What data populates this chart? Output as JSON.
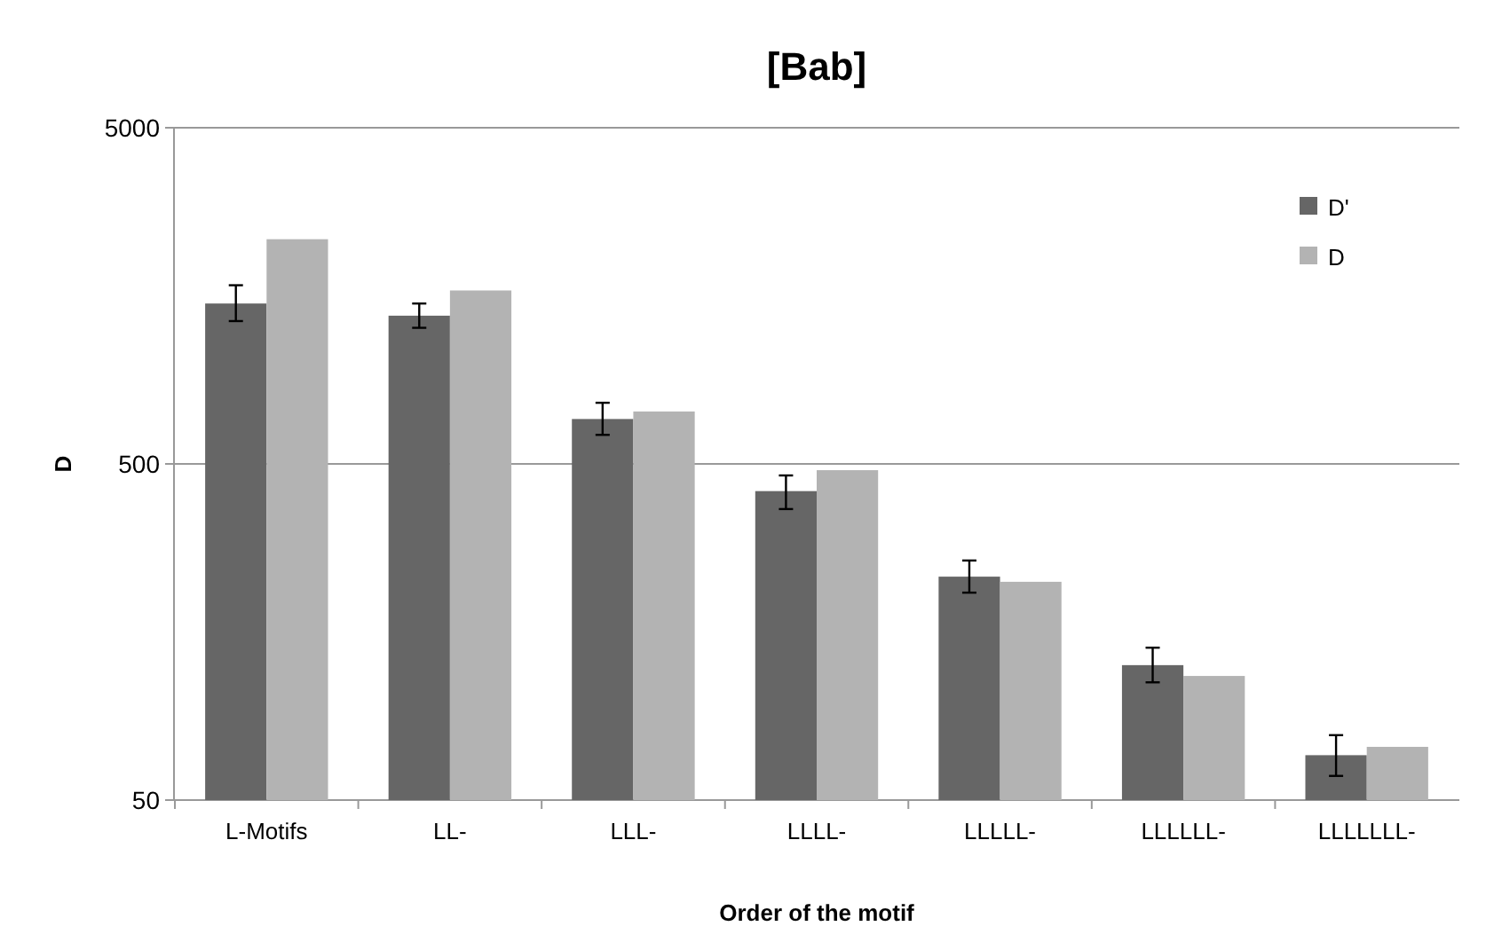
{
  "chart_data": {
    "type": "bar",
    "title": "[Bab]",
    "xlabel": "Order of the motif",
    "ylabel": "D",
    "categories": [
      "L-Motifs",
      "LL-",
      "LLL-",
      "LLLL-",
      "LLLLL-",
      "LLLLLL-",
      "LLLLLLL-"
    ],
    "series": [
      {
        "name": "D'",
        "color": "#666666",
        "values": [
          1500,
          1380,
          680,
          415,
          231,
          126,
          68
        ],
        "errors": [
          [
            1330,
            1700
          ],
          [
            1270,
            1500
          ],
          [
            610,
            760
          ],
          [
            367,
            462
          ],
          [
            207,
            258
          ],
          [
            112,
            142
          ],
          [
            59,
            78
          ]
        ]
      },
      {
        "name": "D",
        "color": "#b3b3b3",
        "values": [
          2330,
          1640,
          716,
          479,
          223,
          117,
          72
        ]
      }
    ],
    "log": true,
    "ylim": [
      50,
      5000
    ],
    "yticks": [
      50,
      500,
      5000
    ],
    "grid": "y",
    "legend": "top right"
  }
}
